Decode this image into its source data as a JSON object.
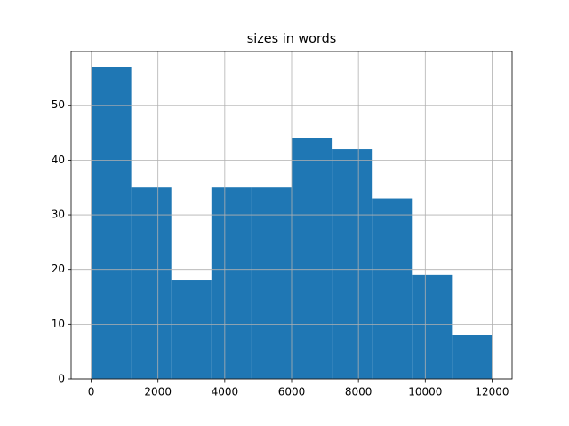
{
  "chart_data": {
    "type": "histogram",
    "title": "sizes in words",
    "bins": [
      0,
      1200,
      2400,
      3600,
      4800,
      6000,
      7200,
      8400,
      9600,
      10800,
      12000
    ],
    "values": [
      57,
      35,
      18,
      35,
      35,
      44,
      42,
      33,
      19,
      8
    ],
    "color": "#1f77b4",
    "xlim": [
      -600,
      12600
    ],
    "xticks": [
      0,
      2000,
      4000,
      6000,
      8000,
      10000,
      12000
    ],
    "ylim": [
      0,
      59.85
    ],
    "yticks": [
      0,
      10,
      20,
      30,
      40,
      50
    ],
    "grid": true
  }
}
